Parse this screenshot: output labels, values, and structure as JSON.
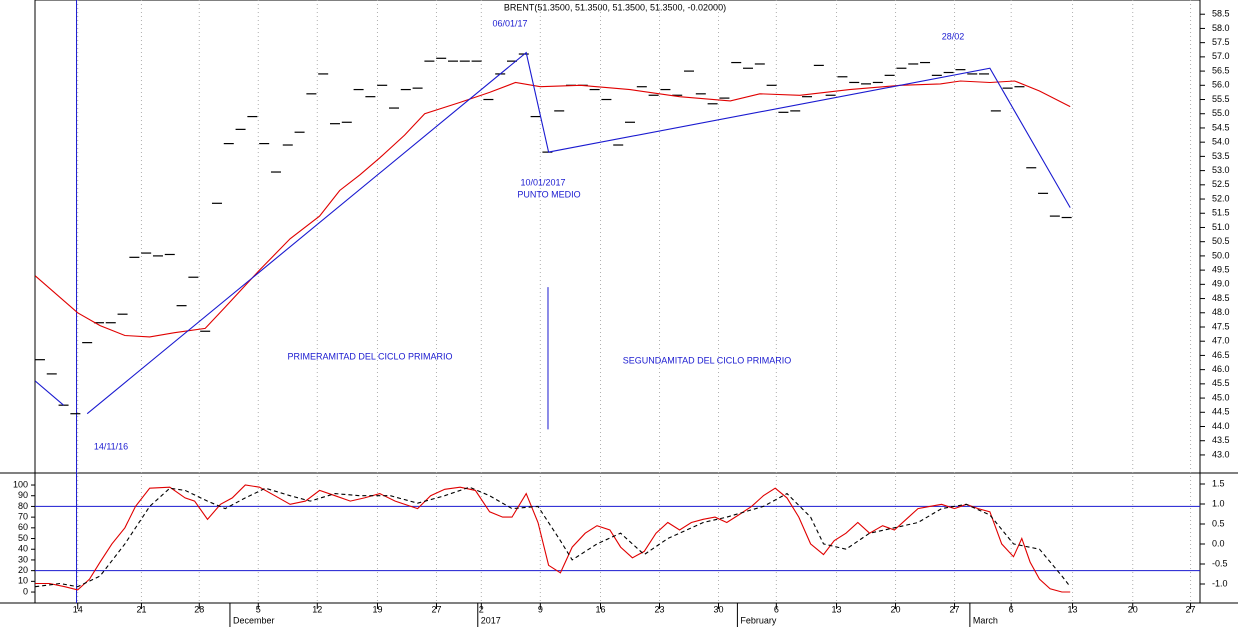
{
  "chart_data": [
    {
      "type": "line",
      "title": "BRENT(51.3500, 51.3500, 51.3500, 51.3500, -0.02000)",
      "annotations": [
        "06/01/17",
        "28/02",
        "10/01/2017",
        "PUNTO MEDIO",
        "PRIMERAMITAD DEL CICLO PRIMARIO",
        "SEGUNDAMITAD DEL CICLO PRIMARIO",
        "14/11/16"
      ],
      "xlim": [
        -0.42,
        98.3
      ],
      "ylim": [
        42.4,
        59.0
      ],
      "yticks": [
        {
          "value": 43,
          "label": "43.0"
        },
        43.5,
        {
          "value": 44,
          "label": "44.0"
        },
        44.5,
        {
          "value": 45,
          "label": "45.0"
        },
        45.5,
        {
          "value": 46,
          "label": "46.0"
        },
        46.5,
        {
          "value": 47,
          "label": "47.0"
        },
        47.5,
        {
          "value": 48,
          "label": "48.0"
        },
        48.5,
        {
          "value": 49,
          "label": "49.0"
        },
        49.5,
        {
          "value": 50,
          "label": "50.0"
        },
        50.5,
        {
          "value": 51,
          "label": "51.0"
        },
        51.5,
        {
          "value": 52,
          "label": "52.0"
        },
        52.5,
        {
          "value": 53,
          "label": "53.0"
        },
        53.5,
        {
          "value": 54,
          "label": "54.0"
        },
        54.5,
        {
          "value": 55,
          "label": "55.0"
        },
        55.5,
        {
          "value": 56,
          "label": "56.0"
        },
        56.5,
        {
          "value": 57,
          "label": "57.0"
        },
        57.5,
        {
          "value": 58,
          "label": "58.0"
        },
        58.5
      ],
      "vlines": [
        3.1
      ],
      "segments": [
        {
          "x": 43.05,
          "y": [
            48.9,
            43.9
          ],
          "color": "#1a1ad0"
        }
      ],
      "series": [
        {
          "style": "dash",
          "color": "#000000",
          "x": [
            0,
            1,
            2,
            3,
            4,
            5,
            6,
            7,
            8,
            9,
            10,
            11,
            12,
            13,
            14,
            15,
            16,
            17,
            18,
            19,
            20,
            21,
            22,
            23,
            24,
            25,
            26,
            27,
            28,
            29,
            30,
            31,
            32,
            33,
            34,
            35,
            36,
            37,
            38,
            39,
            40,
            41,
            42,
            43,
            44,
            45,
            46,
            47,
            48,
            49,
            50,
            51,
            52,
            53,
            54,
            55,
            56,
            57,
            58,
            59,
            60,
            61,
            62,
            63,
            64,
            65,
            66,
            67,
            68,
            69,
            70,
            71,
            72,
            73,
            74,
            75,
            76,
            77,
            78,
            79,
            80,
            81,
            82,
            83,
            84,
            85,
            86,
            87
          ],
          "values": [
            46.35,
            45.85,
            44.75,
            44.45,
            46.95,
            47.65,
            47.65,
            47.95,
            49.95,
            50.1,
            50.0,
            50.05,
            48.25,
            49.25,
            47.35,
            51.85,
            53.95,
            54.45,
            54.9,
            53.95,
            52.95,
            53.9,
            54.35,
            55.7,
            56.4,
            54.65,
            54.7,
            55.85,
            55.6,
            56.0,
            55.2,
            55.85,
            55.9,
            56.85,
            56.95,
            56.85,
            56.85,
            56.85,
            55.5,
            56.4,
            56.85,
            57.1,
            54.9,
            53.65,
            55.1,
            56.0,
            56.0,
            55.85,
            55.5,
            53.9,
            54.7,
            55.95,
            55.65,
            55.85,
            55.65,
            56.5,
            55.7,
            55.35,
            55.55,
            56.8,
            56.6,
            56.75,
            56.0,
            55.05,
            55.1,
            55.6,
            56.7,
            55.65,
            56.3,
            56.1,
            56.05,
            56.1,
            56.35,
            56.6,
            56.75,
            56.8,
            56.35,
            56.45,
            56.55,
            56.4,
            56.4,
            55.1,
            55.9,
            55.95,
            53.1,
            52.2,
            51.4,
            51.35
          ]
        },
        {
          "style": "line",
          "color": "#e00000",
          "x": [
            -0.4,
            3.2,
            5.1,
            7.2,
            9.3,
            11.4,
            14.0,
            15.7,
            18.6,
            21.2,
            23.7,
            25.4,
            27.1,
            28.8,
            30.9,
            32.6,
            35.6,
            38.1,
            40.3,
            42.4,
            45.8,
            50.0,
            54.2,
            58.5,
            61.0,
            64.4,
            68.6,
            72.9,
            76.3,
            78.0,
            80.5,
            82.6,
            84.7,
            87.3
          ],
          "values": [
            49.3,
            48.0,
            47.55,
            47.2,
            47.15,
            47.3,
            47.45,
            48.2,
            49.5,
            50.6,
            51.4,
            52.3,
            52.85,
            53.45,
            54.25,
            55.0,
            55.4,
            55.75,
            56.1,
            55.95,
            56.0,
            55.85,
            55.6,
            55.45,
            55.7,
            55.65,
            55.85,
            56.0,
            56.05,
            56.15,
            56.1,
            56.15,
            55.8,
            55.25
          ]
        },
        {
          "style": "line",
          "color": "#1a1ad0",
          "x": [
            -0.4,
            2.0,
            3.0,
            4.0,
            41.2,
            43.1,
            80.5,
            87.3
          ],
          "values": [
            45.6,
            44.75,
            null,
            44.45,
            57.15,
            53.65,
            56.6,
            51.7
          ]
        }
      ]
    },
    {
      "type": "line",
      "xlim": [
        -0.42,
        98.3
      ],
      "ylim": [
        -9.3,
        110.3
      ],
      "yticks": [
        0,
        10,
        20,
        30,
        40,
        50,
        60,
        70,
        80,
        90,
        100
      ],
      "y2lim": [
        -1.45,
        1.75
      ],
      "y2ticks": [
        1.5,
        {
          "value": 1,
          "label": "1.0"
        },
        0.5,
        {
          "value": 0,
          "label": "0.0"
        },
        -0.5,
        {
          "value": -1,
          "label": "-1.0"
        }
      ],
      "hlines": [
        80,
        20
      ],
      "grid": true,
      "xticks": [
        {
          "value": 3.2,
          "label": "14"
        },
        {
          "value": 8.6,
          "label": "21"
        },
        {
          "value": 13.5,
          "label": "28"
        },
        {
          "value": 18.5,
          "label": "5"
        },
        {
          "value": 23.5,
          "label": "12"
        },
        {
          "value": 28.6,
          "label": "19"
        },
        {
          "value": 33.6,
          "label": "27"
        },
        {
          "value": 37.4,
          "label": "2"
        },
        {
          "value": 42.4,
          "label": "9"
        },
        {
          "value": 47.5,
          "label": "16"
        },
        {
          "value": 52.5,
          "label": "23"
        },
        {
          "value": 57.5,
          "label": "30"
        },
        {
          "value": 62.4,
          "label": "6"
        },
        {
          "value": 67.5,
          "label": "13"
        },
        {
          "value": 72.5,
          "label": "20"
        },
        {
          "value": 77.5,
          "label": "27"
        },
        {
          "value": 82.3,
          "label": "6"
        },
        {
          "value": 87.5,
          "label": "13"
        },
        {
          "value": 92.6,
          "label": "20"
        },
        {
          "value": 97.5,
          "label": "27"
        }
      ],
      "months": [
        {
          "value": 16.1,
          "label": "December"
        },
        {
          "value": 37.1,
          "label": "2017"
        },
        {
          "value": 59.1,
          "label": "February"
        },
        {
          "value": 78.8,
          "label": "March"
        }
      ],
      "series": [
        {
          "style": "line",
          "color": "#e00000",
          "x": [
            -0.4,
            0.8,
            2.1,
            3.2,
            4.2,
            5.1,
            6.1,
            7.2,
            8.1,
            9.3,
            11.0,
            12.3,
            13.1,
            14.2,
            15.3,
            16.3,
            17.4,
            18.6,
            19.9,
            21.2,
            22.5,
            23.7,
            25.0,
            26.3,
            27.5,
            28.8,
            30.1,
            32.0,
            33.1,
            34.3,
            35.6,
            36.9,
            38.1,
            39.2,
            40.0,
            41.2,
            42.2,
            43.1,
            44.1,
            45.1,
            46.2,
            47.2,
            48.3,
            49.2,
            50.2,
            51.2,
            52.2,
            53.2,
            54.2,
            55.2,
            56.2,
            57.2,
            58.2,
            59.2,
            60.3,
            61.3,
            62.3,
            63.3,
            64.3,
            65.3,
            66.4,
            67.3,
            68.3,
            69.3,
            70.3,
            71.4,
            72.4,
            73.4,
            74.4,
            75.4,
            76.4,
            77.5,
            78.5,
            79.5,
            80.5,
            81.5,
            82.5,
            83.2,
            83.9,
            84.7,
            85.6,
            86.6,
            87.3
          ],
          "values": [
            8,
            8,
            5,
            2,
            12,
            28,
            45,
            60,
            80,
            97,
            98,
            88,
            85,
            68,
            82,
            88,
            100,
            98,
            90,
            82,
            85,
            95,
            90,
            85,
            88,
            92,
            85,
            78,
            90,
            96,
            98,
            95,
            75,
            70,
            70,
            92,
            65,
            25,
            18,
            42,
            55,
            62,
            58,
            42,
            32,
            38,
            55,
            65,
            58,
            65,
            68,
            70,
            65,
            72,
            80,
            90,
            97,
            88,
            70,
            45,
            35,
            48,
            55,
            65,
            55,
            62,
            58,
            68,
            78,
            80,
            82,
            78,
            82,
            78,
            75,
            45,
            33,
            50,
            28,
            12,
            3,
            0,
            0
          ]
        },
        {
          "style": "dashed",
          "color": "#000000",
          "x": [
            -0.4,
            1.7,
            3.2,
            5.1,
            7.2,
            9.3,
            11.0,
            12.3,
            14.2,
            15.7,
            17.4,
            19.1,
            21.2,
            22.9,
            25.0,
            27.1,
            29.7,
            32.0,
            34.3,
            36.4,
            38.1,
            40.0,
            42.2,
            44.1,
            45.1,
            47.2,
            49.2,
            51.2,
            53.2,
            56.2,
            58.2,
            61.3,
            63.3,
            65.3,
            66.4,
            68.3,
            70.3,
            72.4,
            74.4,
            76.4,
            78.5,
            80.5,
            82.5,
            84.7,
            86.6,
            87.3
          ],
          "values": [
            5,
            8,
            5,
            15,
            45,
            80,
            97,
            95,
            85,
            78,
            88,
            97,
            90,
            85,
            92,
            90,
            90,
            83,
            90,
            98,
            90,
            78,
            80,
            48,
            30,
            45,
            55,
            35,
            50,
            65,
            70,
            80,
            92,
            70,
            45,
            40,
            55,
            60,
            65,
            78,
            82,
            72,
            45,
            40,
            15,
            5
          ]
        }
      ]
    }
  ]
}
